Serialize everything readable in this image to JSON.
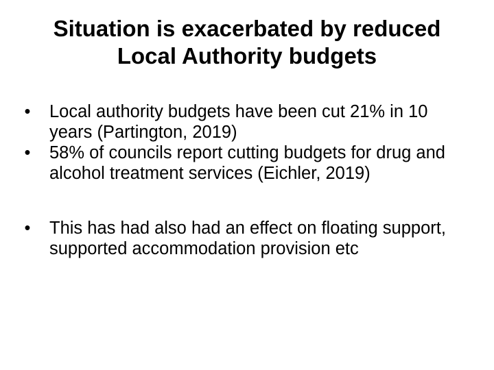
{
  "slide": {
    "title_lines": [
      "Situation is exacerbated by reduced",
      "Local Authority budgets"
    ],
    "bullet_glyph": "•",
    "bullets": [
      "Local authority budgets have been cut 21% in 10 years (Partington, 2019)",
      "58% of councils report cutting budgets for drug and alcohol treatment services (Eichler, 2019)",
      "This has had also had an effect on floating support, supported accommodation provision etc"
    ]
  }
}
